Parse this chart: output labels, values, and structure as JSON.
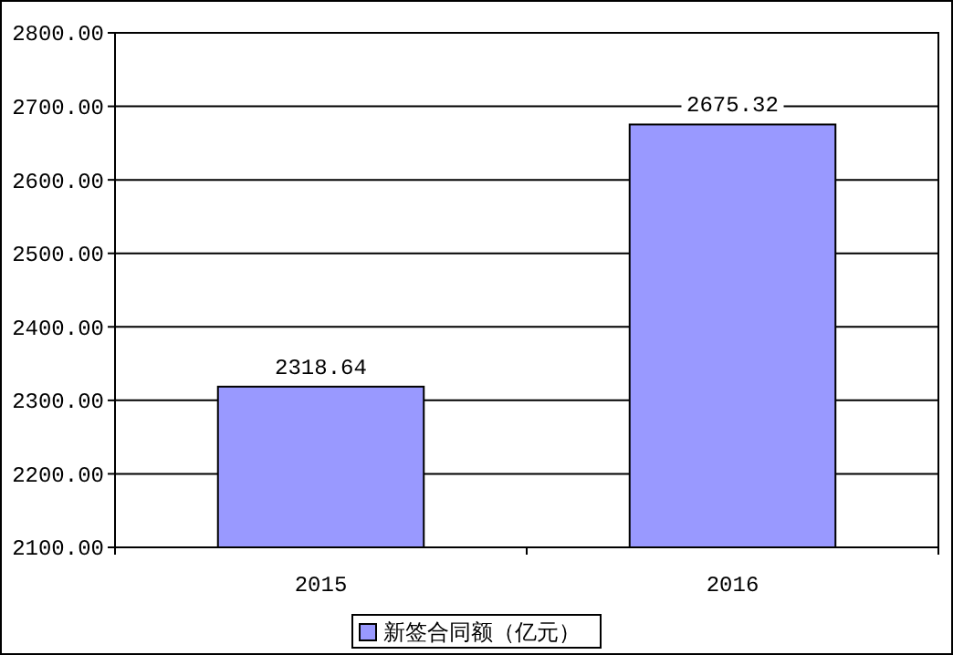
{
  "chart_data": {
    "type": "bar",
    "categories": [
      "2015",
      "2016"
    ],
    "series": [
      {
        "name": "新签合同额（亿元）",
        "color": "#9999ff",
        "values": [
          2318.64,
          2675.32
        ]
      }
    ],
    "ylim": [
      2100,
      2800
    ],
    "yticks": [
      {
        "value": 2100,
        "label": "2100.00"
      },
      {
        "value": 2200,
        "label": "2200.00"
      },
      {
        "value": 2300,
        "label": "2300.00"
      },
      {
        "value": 2400,
        "label": "2400.00"
      },
      {
        "value": 2500,
        "label": "2500.00"
      },
      {
        "value": 2600,
        "label": "2600.00"
      },
      {
        "value": 2700,
        "label": "2700.00"
      },
      {
        "value": 2800,
        "label": "2800.00"
      }
    ],
    "grid": "y",
    "data_labels": true,
    "legend": "bottom"
  }
}
